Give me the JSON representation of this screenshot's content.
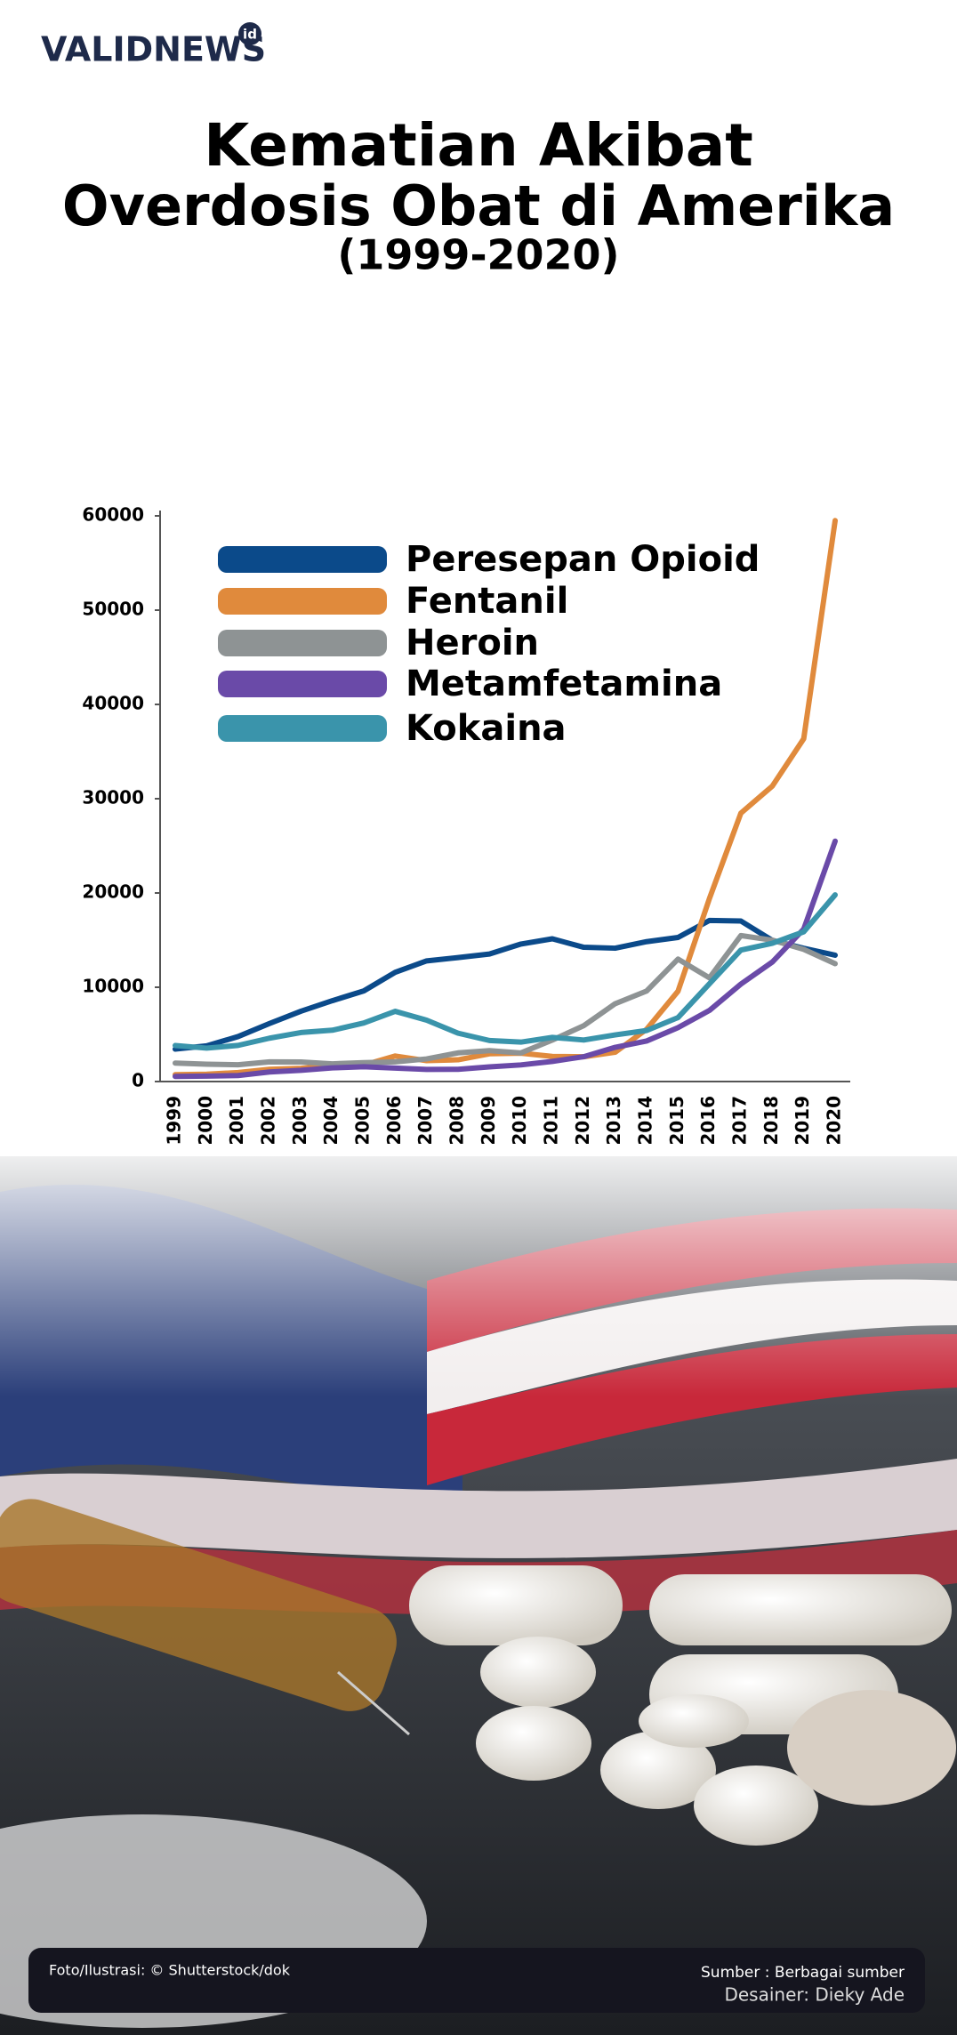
{
  "header": {
    "logo": "VALIDNEWS",
    "logo_badge": "id",
    "title_lines": [
      "Kematian Akibat",
      "Overdosis Obat di Amerika"
    ],
    "subtitle": "(1999-2020)"
  },
  "chart_data": {
    "type": "line",
    "categories": [
      "1999",
      "2000",
      "2001",
      "2002",
      "2003",
      "2004",
      "2005",
      "2006",
      "2007",
      "2008",
      "2009",
      "2010",
      "2011",
      "2012",
      "2013",
      "2014",
      "2015",
      "2016",
      "2017",
      "2018",
      "2019",
      "2020"
    ],
    "series": [
      {
        "name": "Peresepan Opioid",
        "color": "#0b4a8a",
        "values": [
          3442,
          3785,
          4770,
          6155,
          7456,
          8577,
          9612,
          11589,
          12796,
          13149,
          13523,
          14583,
          15140,
          14240,
          14145,
          14838,
          15281,
          17087,
          17029,
          14975,
          14139,
          13400
        ]
      },
      {
        "name": "Fentanil",
        "color": "#e08a3c",
        "values": [
          730,
          782,
          957,
          1295,
          1400,
          1664,
          1742,
          2707,
          2213,
          2306,
          2946,
          3007,
          2666,
          2628,
          3105,
          5544,
          9580,
          19413,
          28466,
          31335,
          36359,
          59500
        ]
      },
      {
        "name": "Heroin",
        "color": "#8e9394",
        "values": [
          1960,
          1842,
          1779,
          2089,
          2080,
          1878,
          2009,
          2088,
          2399,
          3041,
          3278,
          3036,
          4397,
          5925,
          8257,
          9600,
          12989,
          11000,
          15482,
          14996,
          14019,
          12500
        ]
      },
      {
        "name": "Metamfetamina",
        "color": "#6a4aa8",
        "values": [
          547,
          578,
          637,
          1014,
          1194,
          1450,
          1573,
          1427,
          1288,
          1302,
          1561,
          1763,
          2137,
          2635,
          3627,
          4298,
          5716,
          7542,
          10333,
          12676,
          16167,
          25500
        ]
      },
      {
        "name": "Kokaina",
        "color": "#3a94ab",
        "values": [
          3822,
          3544,
          3833,
          4599,
          5199,
          5443,
          6208,
          7448,
          6512,
          5129,
          4350,
          4183,
          4681,
          4404,
          4944,
          5415,
          6784,
          10375,
          13942,
          14666,
          15883,
          19800
        ]
      }
    ],
    "ylim": [
      0,
      60000
    ],
    "yticks": [
      0,
      10000,
      20000,
      30000,
      40000,
      50000,
      60000
    ],
    "grid": false,
    "legend": "upper left"
  },
  "footer": {
    "photo_credit": "Foto/Ilustrasi: © Shutterstock/dok",
    "source": "Sumber : Berbagai sumber",
    "designer": "Desainer: Dieky Ade"
  }
}
